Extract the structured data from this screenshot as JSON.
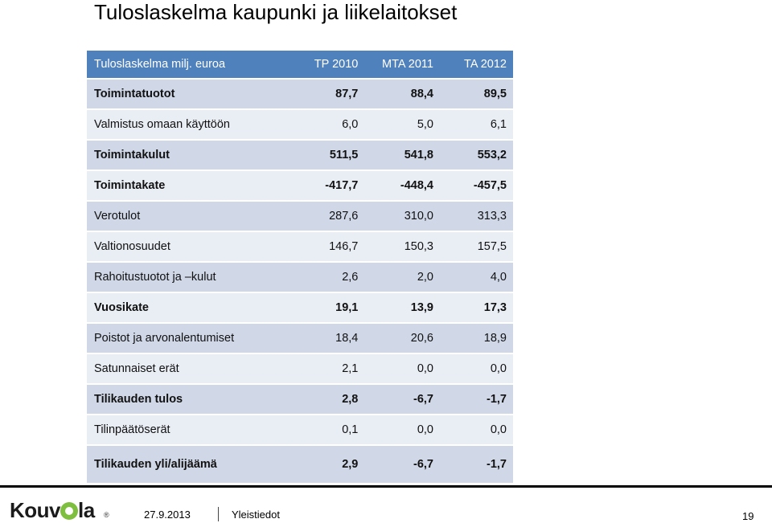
{
  "title": "Tuloslaskelma kaupunki ja liikelaitokset",
  "table": {
    "header": [
      "Tuloslaskelma milj. euroa",
      "TP 2010",
      "MTA 2011",
      "TA 2012"
    ],
    "rows": [
      {
        "label": "Toimintatuotot",
        "values": [
          "87,7",
          "88,4",
          "89,5"
        ],
        "bold": true
      },
      {
        "label": "Valmistus omaan käyttöön",
        "values": [
          "6,0",
          "5,0",
          "6,1"
        ],
        "bold": false
      },
      {
        "label": "Toimintakulut",
        "values": [
          "511,5",
          "541,8",
          "553,2"
        ],
        "bold": true
      },
      {
        "label": "Toimintakate",
        "values": [
          "-417,7",
          "-448,4",
          "-457,5"
        ],
        "bold": true
      },
      {
        "label": "Verotulot",
        "values": [
          "287,6",
          "310,0",
          "313,3"
        ],
        "bold": false
      },
      {
        "label": "Valtionosuudet",
        "values": [
          "146,7",
          "150,3",
          "157,5"
        ],
        "bold": false
      },
      {
        "label": "Rahoitustuotot ja –kulut",
        "values": [
          "2,6",
          "2,0",
          "4,0"
        ],
        "bold": false
      },
      {
        "label": "Vuosikate",
        "values": [
          "19,1",
          "13,9",
          "17,3"
        ],
        "bold": true
      },
      {
        "label": "Poistot ja arvonalentumiset",
        "values": [
          "18,4",
          "20,6",
          "18,9"
        ],
        "bold": false
      },
      {
        "label": "Satunnaiset erät",
        "values": [
          "2,1",
          "0,0",
          "0,0"
        ],
        "bold": false
      },
      {
        "label": "Tilikauden tulos",
        "values": [
          "2,8",
          "-6,7",
          "-1,7"
        ],
        "bold": true
      },
      {
        "label": "Tilinpäätöserät",
        "values": [
          "0,1",
          "0,0",
          "0,0"
        ],
        "bold": false
      },
      {
        "label": "Tilikauden yli/alijäämä",
        "values": [
          "2,9",
          "-6,7",
          "-1,7"
        ],
        "bold": true
      }
    ]
  },
  "footer": {
    "logo_left": "Kouv",
    "logo_right": "la",
    "registered": "®",
    "date": "27.9.2013",
    "label": "Yleistiedot",
    "page": "19"
  },
  "colors": {
    "header_bg": "#4f81bd",
    "row_dark": "#d0d8e8",
    "row_light": "#e9edf4",
    "logo_accent": "#7fbf3f"
  }
}
